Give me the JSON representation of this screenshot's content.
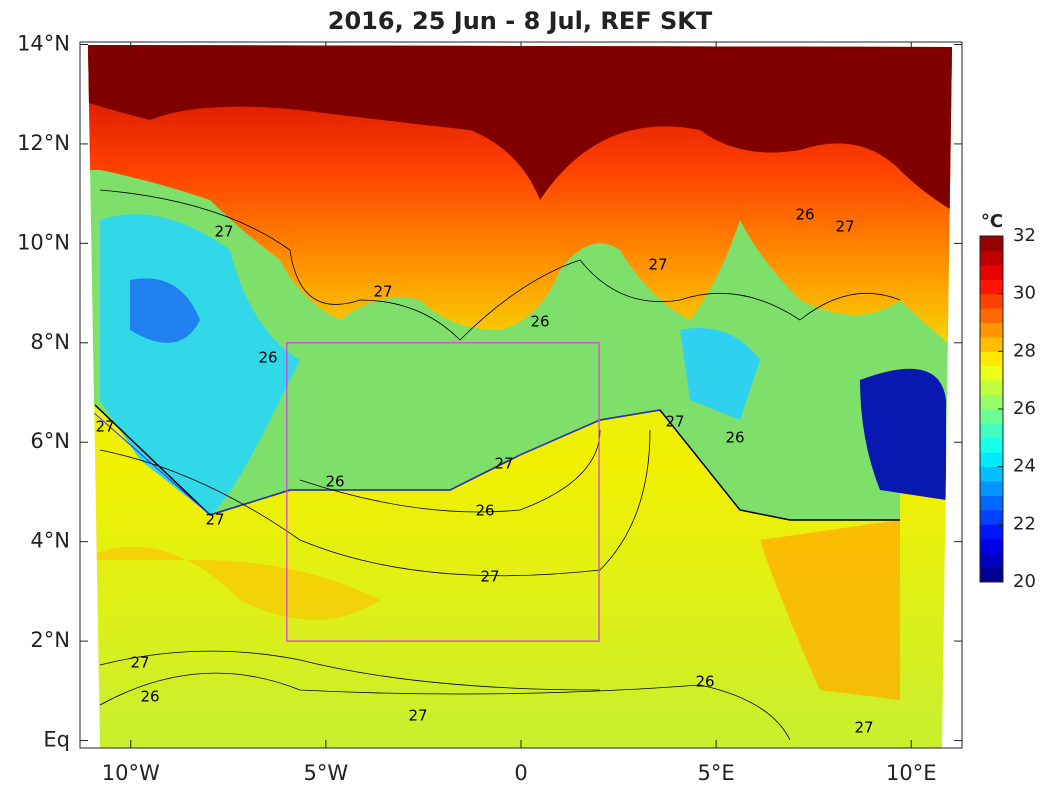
{
  "chart_data": {
    "type": "map",
    "title": "2016, 25 Jun - 8 Jul, REF SKT",
    "xlim": [
      -11.3,
      11.3
    ],
    "ylim": [
      -0.15,
      14.05
    ],
    "xticks": [
      {
        "value": -10,
        "label": "10°W"
      },
      {
        "value": -5,
        "label": "5°W"
      },
      {
        "value": 0,
        "label": "0"
      },
      {
        "value": 5,
        "label": "5°E"
      },
      {
        "value": 10,
        "label": "10°E"
      }
    ],
    "yticks": [
      {
        "value": 0,
        "label": "Eq"
      },
      {
        "value": 2,
        "label": "2°N"
      },
      {
        "value": 4,
        "label": "4°N"
      },
      {
        "value": 6,
        "label": "6°N"
      },
      {
        "value": 8,
        "label": "8°N"
      },
      {
        "value": 10,
        "label": "10°N"
      },
      {
        "value": 12,
        "label": "12°N"
      },
      {
        "value": 14,
        "label": "14°N"
      }
    ],
    "colorbar": {
      "label": "°C",
      "clim": [
        20,
        32
      ],
      "ticks": [
        20,
        22,
        24,
        26,
        28,
        30,
        32
      ],
      "colormap": "jet"
    },
    "box": {
      "lon": [
        -6,
        2
      ],
      "lat": [
        2,
        8
      ],
      "color": "#e040e0"
    },
    "contour_labels": [
      "27",
      "26",
      "27",
      "26",
      "26",
      "27",
      "26",
      "27",
      "27",
      "26",
      "27",
      "26",
      "27",
      "27",
      "26",
      "27",
      "27",
      "26",
      "27",
      "27"
    ]
  }
}
